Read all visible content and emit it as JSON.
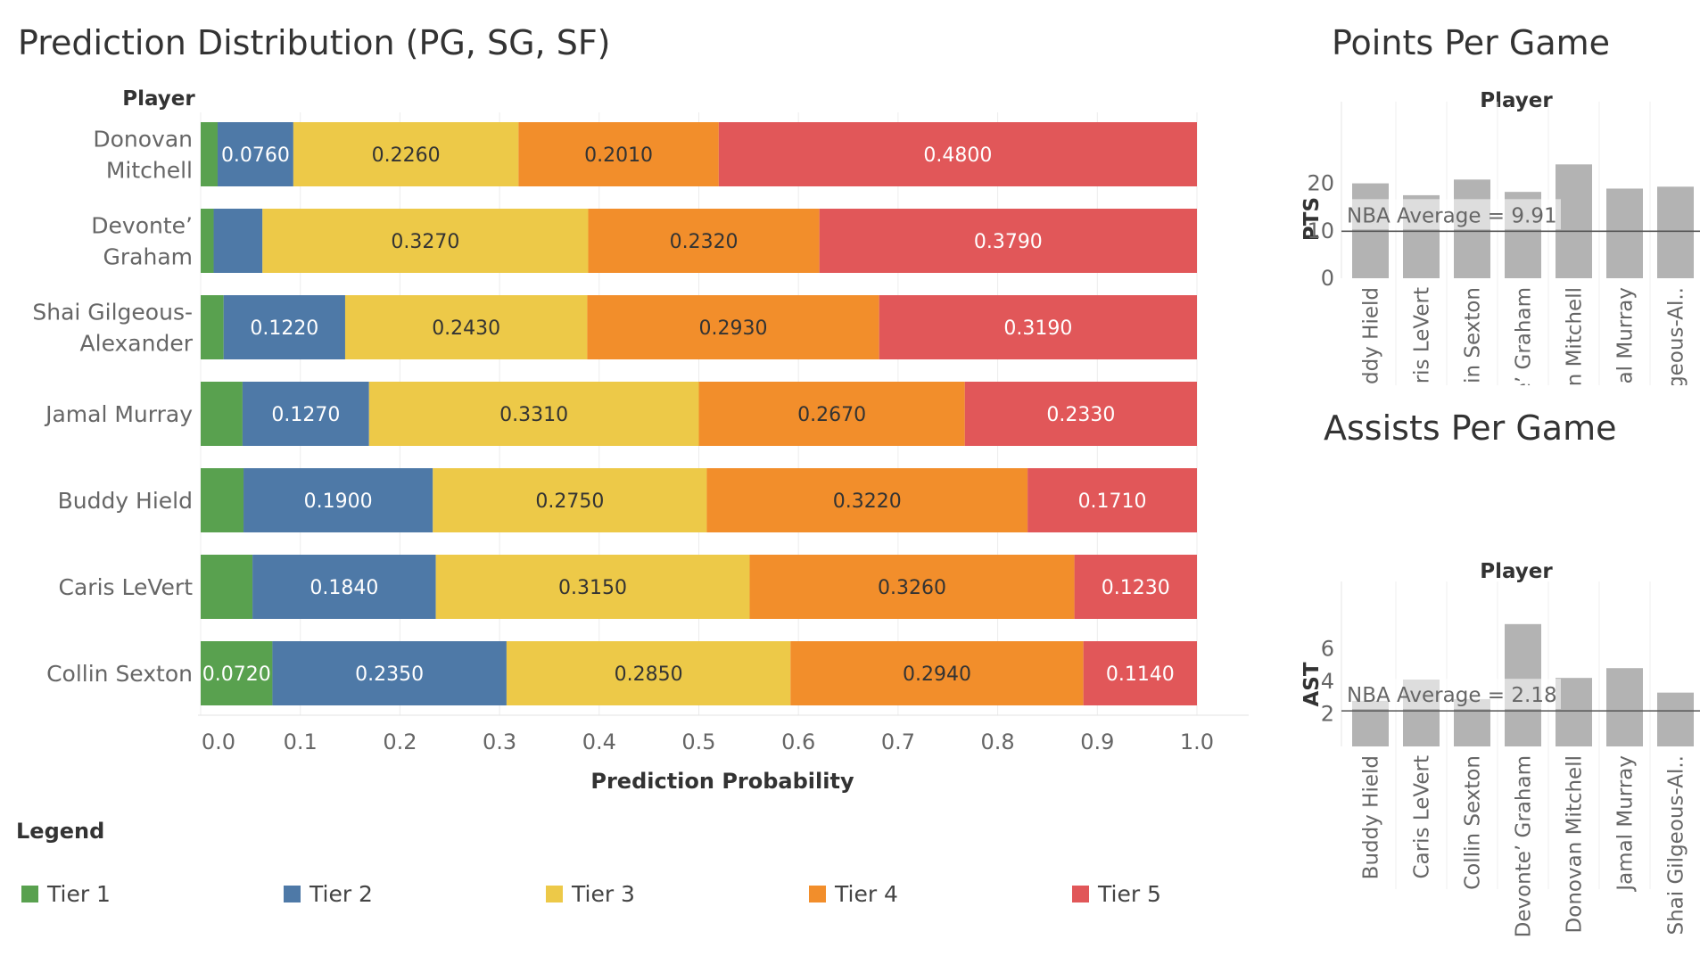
{
  "titles": {
    "main": "Prediction Distribution (PG, SG, SF)",
    "pts": "Points Per Game",
    "ast": "Assists Per Game"
  },
  "legend": {
    "title": "Legend",
    "items": [
      {
        "label": "Tier 1",
        "color": "#59a14f"
      },
      {
        "label": "Tier 2",
        "color": "#4e79a7"
      },
      {
        "label": "Tier 3",
        "color": "#edc948"
      },
      {
        "label": "Tier 4",
        "color": "#f28e2b"
      },
      {
        "label": "Tier 5",
        "color": "#e15759"
      }
    ]
  },
  "chart_data": [
    {
      "type": "bar",
      "orientation": "horizontal-stacked",
      "title": "Prediction Distribution (PG, SG, SF)",
      "row_header": "Player",
      "xlabel": "Prediction Probability",
      "xlim": [
        0,
        1
      ],
      "xticks": [
        "0.0",
        "0.1",
        "0.2",
        "0.3",
        "0.4",
        "0.5",
        "0.6",
        "0.7",
        "0.8",
        "0.9",
        "1.0"
      ],
      "categories": [
        [
          "Donovan",
          "Mitchell"
        ],
        [
          "Devonte’",
          "Graham"
        ],
        [
          "Shai Gilgeous-",
          "Alexander"
        ],
        [
          "Jamal Murray"
        ],
        [
          "Buddy Hield"
        ],
        [
          "Caris LeVert"
        ],
        [
          "Collin Sexton"
        ]
      ],
      "series": [
        {
          "name": "Tier 1",
          "color": "#59a14f",
          "values": [
            0.017,
            0.013,
            0.023,
            0.042,
            0.043,
            0.052,
            0.072
          ],
          "labels": [
            "",
            "",
            "",
            "",
            "",
            "",
            "0.0720"
          ]
        },
        {
          "name": "Tier 2",
          "color": "#4e79a7",
          "values": [
            0.076,
            0.049,
            0.122,
            0.127,
            0.19,
            0.184,
            0.235
          ],
          "labels": [
            "0.0760",
            "",
            "0.1220",
            "0.1270",
            "0.1900",
            "0.1840",
            "0.2350"
          ]
        },
        {
          "name": "Tier 3",
          "color": "#edc948",
          "values": [
            0.226,
            0.327,
            0.243,
            0.331,
            0.275,
            0.315,
            0.285
          ],
          "labels": [
            "0.2260",
            "0.3270",
            "0.2430",
            "0.3310",
            "0.2750",
            "0.3150",
            "0.2850"
          ]
        },
        {
          "name": "Tier 4",
          "color": "#f28e2b",
          "values": [
            0.201,
            0.232,
            0.293,
            0.267,
            0.322,
            0.326,
            0.294
          ],
          "labels": [
            "0.2010",
            "0.2320",
            "0.2930",
            "0.2670",
            "0.3220",
            "0.3260",
            "0.2940"
          ]
        },
        {
          "name": "Tier 5",
          "color": "#e15759",
          "values": [
            0.48,
            0.379,
            0.319,
            0.233,
            0.171,
            0.123,
            0.114
          ],
          "labels": [
            "0.4800",
            "0.3790",
            "0.3190",
            "0.2330",
            "0.1710",
            "0.1230",
            "0.1140"
          ]
        }
      ]
    },
    {
      "type": "bar",
      "title": "Points Per Game",
      "col_header": "Player",
      "ylabel": "PTS",
      "ylim": [
        0,
        25
      ],
      "yticks": [
        0,
        10,
        20
      ],
      "bar_color": "#b3b3b3",
      "categories": [
        "Buddy Hield",
        "Caris LeVert",
        "Collin Sexton",
        "Devonte’ Graham",
        "Donovan Mitchell",
        "Jamal Murray",
        "Shai Gilgeous-Al.."
      ],
      "values": [
        20.0,
        17.5,
        20.8,
        18.2,
        24.0,
        18.9,
        19.3
      ],
      "reference_line": {
        "label": "NBA Average = 9.91",
        "value": 9.91
      }
    },
    {
      "type": "bar",
      "title": "Assists Per Game",
      "col_header": "Player",
      "ylabel": "AST",
      "ylim": [
        0,
        7.6
      ],
      "yticks": [
        2,
        4,
        6
      ],
      "bar_color": "#b3b3b3",
      "categories": [
        "Buddy Hield",
        "Caris LeVert",
        "Collin Sexton",
        "Devonte’ Graham",
        "Donovan Mitchell",
        "Jamal Murray",
        "Shai Gilgeous-Al.."
      ],
      "values": [
        2.8,
        4.1,
        2.9,
        7.5,
        4.2,
        4.8,
        3.3
      ],
      "reference_line": {
        "label": "NBA Average = 2.18",
        "value": 2.18
      }
    }
  ]
}
